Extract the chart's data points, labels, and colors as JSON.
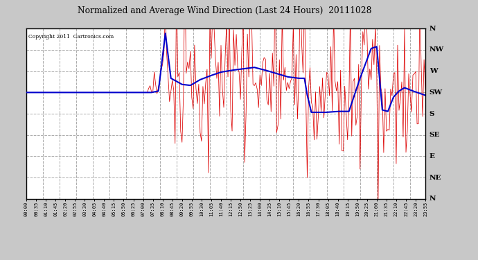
{
  "title": "Normalized and Average Wind Direction (Last 24 Hours)  20111028",
  "copyright": "Copyright 2011  Cartronics.com",
  "bg_color": "#c8c8c8",
  "plot_bg_color": "#ffffff",
  "grid_color": "#aaaaaa",
  "red_color": "#dd0000",
  "blue_color": "#0000cc",
  "compass_labels": [
    "N",
    "NW",
    "W",
    "SW",
    "S",
    "SE",
    "E",
    "NE",
    "N"
  ],
  "compass_values": [
    360,
    315,
    270,
    225,
    180,
    135,
    90,
    45,
    0
  ],
  "ylim": [
    0,
    360
  ],
  "time_labels": [
    "00:00",
    "00:35",
    "01:10",
    "01:45",
    "02:20",
    "02:55",
    "03:30",
    "04:05",
    "04:40",
    "05:15",
    "05:50",
    "06:25",
    "07:00",
    "07:35",
    "08:10",
    "08:45",
    "09:20",
    "09:55",
    "10:30",
    "11:05",
    "11:40",
    "12:15",
    "12:50",
    "13:25",
    "14:00",
    "14:35",
    "15:10",
    "15:45",
    "16:20",
    "16:55",
    "17:30",
    "18:05",
    "18:40",
    "19:15",
    "19:50",
    "20:25",
    "21:00",
    "21:35",
    "22:10",
    "22:45",
    "23:20",
    "23:55"
  ],
  "num_points": 288
}
